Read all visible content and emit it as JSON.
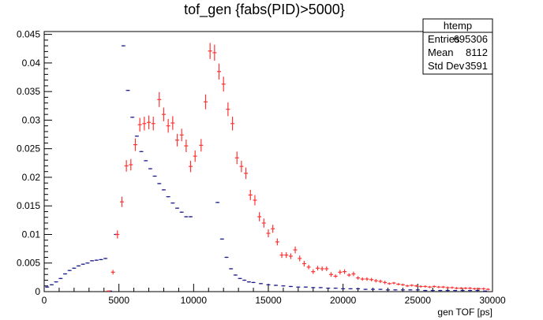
{
  "chart_data": {
    "type": "scatter",
    "title": "tof_gen {fabs(PID)>5000}",
    "xlabel": "gen TOF [ps]",
    "ylabel": "",
    "xlim": [
      0,
      30000
    ],
    "ylim": [
      0,
      0.0455
    ],
    "x_ticks": [
      0,
      5000,
      10000,
      15000,
      20000,
      25000,
      30000
    ],
    "y_ticks": [
      0,
      0.005,
      0.01,
      0.015,
      0.02,
      0.025,
      0.03,
      0.035,
      0.04,
      0.045
    ],
    "x_tick_labels": [
      "0",
      "5000",
      "10000",
      "15000",
      "20000",
      "25000",
      "30000"
    ],
    "y_tick_labels": [
      "0",
      "0.005",
      "0.01",
      "0.015",
      "0.02",
      "0.025",
      "0.03",
      "0.035",
      "0.04",
      "0.045"
    ],
    "stats_box": {
      "title": "htemp",
      "rows": [
        {
          "label": "Entries",
          "value": "695306"
        },
        {
          "label": "Mean",
          "value": "8112"
        },
        {
          "label": "Std Dev",
          "value": "3591"
        }
      ]
    },
    "series": [
      {
        "color": "#1a1a8c",
        "points": [
          [
            200,
            0.0008,
            0.0001
          ],
          [
            500,
            0.0012,
            0.0001
          ],
          [
            800,
            0.0017,
            0.0001
          ],
          [
            1100,
            0.0023,
            0.0001
          ],
          [
            1400,
            0.0031,
            0.0001
          ],
          [
            1700,
            0.0037,
            0.0001
          ],
          [
            2000,
            0.0041,
            0.0001
          ],
          [
            2300,
            0.0045,
            0.0001
          ],
          [
            2600,
            0.0048,
            0.0001
          ],
          [
            2900,
            0.005,
            0.0001
          ],
          [
            3200,
            0.0054,
            0.0001
          ],
          [
            3500,
            0.0055,
            0.0001
          ],
          [
            3800,
            0.0056,
            0.0001
          ],
          [
            4100,
            0.0058,
            0.0001
          ],
          [
            4400,
            0.0001,
            0.0001
          ],
          [
            4800,
            0.01,
            0.0001
          ],
          [
            5300,
            0.043,
            0.0001
          ],
          [
            5600,
            0.0352,
            0.0001
          ],
          [
            5900,
            0.0305,
            0.0001
          ],
          [
            6200,
            0.0272,
            0.0001
          ],
          [
            6500,
            0.0245,
            0.0001
          ],
          [
            6800,
            0.0229,
            0.0001
          ],
          [
            7100,
            0.0215,
            0.0001
          ],
          [
            7400,
            0.0202,
            0.0001
          ],
          [
            7700,
            0.0189,
            0.0001
          ],
          [
            8000,
            0.0178,
            0.0001
          ],
          [
            8300,
            0.0166,
            0.0001
          ],
          [
            8600,
            0.0155,
            0.0001
          ],
          [
            8900,
            0.0146,
            0.0001
          ],
          [
            9200,
            0.0139,
            0.0001
          ],
          [
            9500,
            0.0131,
            0.0001
          ],
          [
            9800,
            0.0131,
            0.0001
          ],
          [
            11600,
            0.0156,
            0.0001
          ],
          [
            11900,
            0.0092,
            0.0001
          ],
          [
            12200,
            0.006,
            0.0001
          ],
          [
            12500,
            0.004,
            0.0001
          ],
          [
            12800,
            0.0029,
            0.0001
          ],
          [
            13100,
            0.0023,
            0.0001
          ],
          [
            13400,
            0.002,
            0.0001
          ],
          [
            13700,
            0.0017,
            0.0001
          ],
          [
            14000,
            0.0016,
            0.0001
          ],
          [
            14500,
            0.0014,
            0.0001
          ],
          [
            15000,
            0.0012,
            0.0001
          ],
          [
            15500,
            0.0011,
            0.0001
          ],
          [
            16000,
            0.001,
            0.0001
          ],
          [
            16500,
            0.0009,
            0.0001
          ],
          [
            17000,
            0.0008,
            0.0001
          ],
          [
            17500,
            0.0008,
            0.0001
          ],
          [
            18000,
            0.0007,
            0.0001
          ],
          [
            18500,
            0.0007,
            0.0001
          ],
          [
            19000,
            0.0006,
            0.0001
          ],
          [
            19500,
            0.0006,
            0.0001
          ],
          [
            20000,
            0.0005,
            0.0001
          ],
          [
            20500,
            0.0005,
            0.0001
          ],
          [
            21000,
            0.0005,
            0.0001
          ],
          [
            21500,
            0.0004,
            0.0001
          ],
          [
            22000,
            0.0004,
            0.0001
          ],
          [
            22500,
            0.0004,
            0.0001
          ],
          [
            23000,
            0.0003,
            0.0001
          ],
          [
            23500,
            0.0003,
            0.0001
          ],
          [
            24000,
            0.0003,
            0.0001
          ],
          [
            24500,
            0.0003,
            0.0001
          ],
          [
            25000,
            0.0003,
            0.0001
          ],
          [
            25500,
            0.0002,
            0.0001
          ],
          [
            26000,
            0.0002,
            0.0001
          ],
          [
            26500,
            0.0002,
            0.0001
          ],
          [
            27000,
            0.0002,
            0.0001
          ],
          [
            27500,
            0.0002,
            0.0001
          ],
          [
            28000,
            0.0002,
            0.0001
          ],
          [
            28500,
            0.0002,
            0.0001
          ],
          [
            29000,
            0.0002,
            0.0001
          ],
          [
            29500,
            0.0001,
            0.0001
          ]
        ]
      },
      {
        "color": "#ff3333",
        "points": [
          [
            4300,
            0.0001,
            0.0001
          ],
          [
            4600,
            0.0034,
            0.0004
          ],
          [
            4900,
            0.01,
            0.0007
          ],
          [
            5200,
            0.0157,
            0.0009
          ],
          [
            5500,
            0.022,
            0.001
          ],
          [
            5800,
            0.0222,
            0.001
          ],
          [
            6100,
            0.0257,
            0.0011
          ],
          [
            6400,
            0.0292,
            0.0012
          ],
          [
            6700,
            0.0294,
            0.0012
          ],
          [
            7000,
            0.0296,
            0.0012
          ],
          [
            7300,
            0.0294,
            0.0012
          ],
          [
            7700,
            0.0336,
            0.0013
          ],
          [
            8000,
            0.031,
            0.0012
          ],
          [
            8300,
            0.029,
            0.0012
          ],
          [
            8600,
            0.0295,
            0.0012
          ],
          [
            8900,
            0.0265,
            0.0011
          ],
          [
            9200,
            0.0274,
            0.0011
          ],
          [
            9500,
            0.0255,
            0.0011
          ],
          [
            9800,
            0.0219,
            0.001
          ],
          [
            10100,
            0.0237,
            0.001
          ],
          [
            10500,
            0.0256,
            0.0011
          ],
          [
            10800,
            0.0332,
            0.0013
          ],
          [
            11100,
            0.0421,
            0.0014
          ],
          [
            11400,
            0.0418,
            0.0014
          ],
          [
            11700,
            0.0385,
            0.0014
          ],
          [
            12000,
            0.0363,
            0.0013
          ],
          [
            12300,
            0.0319,
            0.0012
          ],
          [
            12600,
            0.0294,
            0.0012
          ],
          [
            12900,
            0.0234,
            0.0011
          ],
          [
            13200,
            0.0219,
            0.001
          ],
          [
            13500,
            0.0207,
            0.001
          ],
          [
            13800,
            0.0169,
            0.0009
          ],
          [
            14100,
            0.016,
            0.0009
          ],
          [
            14400,
            0.0131,
            0.0008
          ],
          [
            14700,
            0.012,
            0.0008
          ],
          [
            15000,
            0.0102,
            0.0007
          ],
          [
            15300,
            0.011,
            0.0007
          ],
          [
            15600,
            0.0087,
            0.0006
          ],
          [
            15900,
            0.0064,
            0.0005
          ],
          [
            16200,
            0.0064,
            0.0005
          ],
          [
            16500,
            0.0062,
            0.0005
          ],
          [
            16800,
            0.0073,
            0.0006
          ],
          [
            17100,
            0.0058,
            0.0005
          ],
          [
            17400,
            0.0049,
            0.0005
          ],
          [
            17700,
            0.0043,
            0.0004
          ],
          [
            18000,
            0.0035,
            0.0004
          ],
          [
            18300,
            0.0041,
            0.0004
          ],
          [
            18600,
            0.004,
            0.0004
          ],
          [
            18900,
            0.004,
            0.0004
          ],
          [
            19200,
            0.003,
            0.0004
          ],
          [
            19500,
            0.0027,
            0.0003
          ],
          [
            19800,
            0.0034,
            0.0004
          ],
          [
            20100,
            0.0035,
            0.0004
          ],
          [
            20400,
            0.0029,
            0.0003
          ],
          [
            20700,
            0.0031,
            0.0004
          ],
          [
            21000,
            0.0024,
            0.0003
          ],
          [
            21300,
            0.0022,
            0.0003
          ],
          [
            21600,
            0.0022,
            0.0003
          ],
          [
            21900,
            0.0021,
            0.0003
          ],
          [
            22200,
            0.0019,
            0.0003
          ],
          [
            22500,
            0.0018,
            0.0003
          ],
          [
            22800,
            0.0016,
            0.0003
          ],
          [
            23100,
            0.0014,
            0.0002
          ],
          [
            23400,
            0.0015,
            0.0002
          ],
          [
            23700,
            0.0013,
            0.0002
          ],
          [
            24000,
            0.0012,
            0.0002
          ],
          [
            24300,
            0.001,
            0.0002
          ],
          [
            24600,
            0.0011,
            0.0002
          ],
          [
            24900,
            0.001,
            0.0002
          ],
          [
            25200,
            0.0009,
            0.0002
          ],
          [
            25500,
            0.0009,
            0.0002
          ],
          [
            25800,
            0.0008,
            0.0002
          ],
          [
            26100,
            0.0009,
            0.0002
          ],
          [
            26400,
            0.0008,
            0.0002
          ],
          [
            26700,
            0.0008,
            0.0002
          ],
          [
            27000,
            0.0007,
            0.0002
          ],
          [
            27300,
            0.0007,
            0.0002
          ],
          [
            27600,
            0.0006,
            0.0002
          ],
          [
            27900,
            0.0006,
            0.0002
          ],
          [
            28200,
            0.0006,
            0.0002
          ],
          [
            28500,
            0.0006,
            0.0002
          ],
          [
            28800,
            0.0005,
            0.0002
          ],
          [
            29100,
            0.0005,
            0.0002
          ],
          [
            29400,
            0.0005,
            0.0002
          ],
          [
            29700,
            0.0004,
            0.0002
          ]
        ]
      }
    ]
  }
}
